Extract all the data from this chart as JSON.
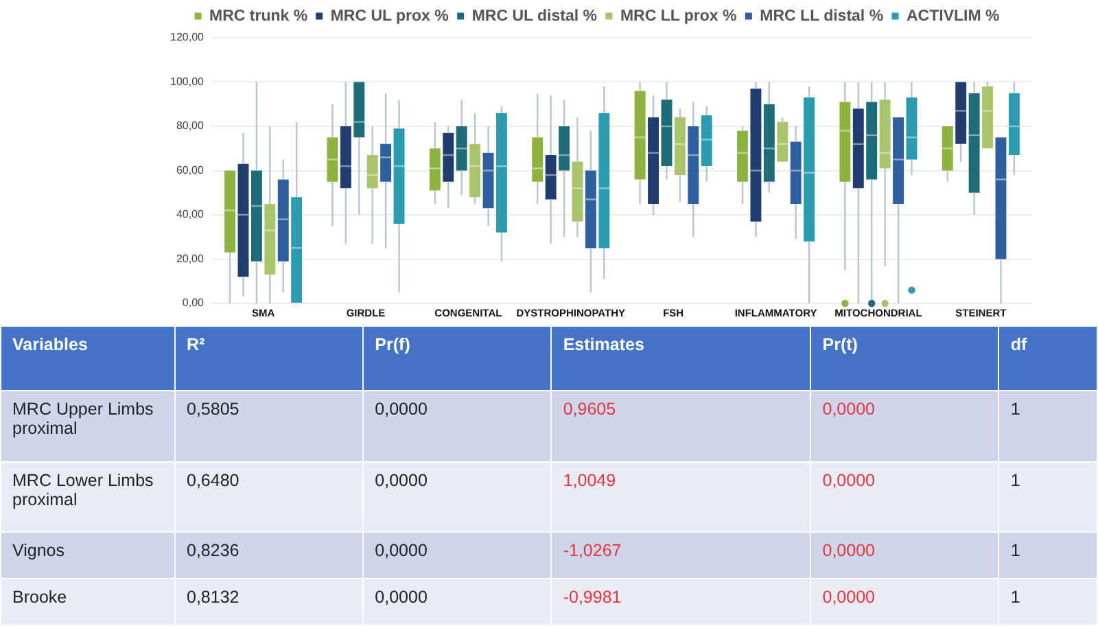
{
  "chart_data": [
    {
      "type": "box",
      "categories": [
        "SMA",
        "GIRDLE",
        "CONGENITAL",
        "DYSTROPHINOPATHY",
        "FSH",
        "INFLAMMATORY",
        "MITOCHONDRIAL",
        "STEINERT"
      ],
      "legend": "top",
      "grid": "y",
      "ylim": [
        0,
        120
      ],
      "yticks": [
        {
          "value": 0,
          "label": "0,00"
        },
        {
          "value": 20,
          "label": "20,00"
        },
        {
          "value": 40,
          "label": "40,00"
        },
        {
          "value": 60,
          "label": "60,00"
        },
        {
          "value": 80,
          "label": "80,00"
        },
        {
          "value": 100,
          "label": "100,00"
        },
        {
          "value": 120,
          "label": "120,00"
        }
      ],
      "series": [
        {
          "name": "MRC trunk %",
          "color": "#8db33f",
          "boxes": [
            {
              "low": 0,
              "q1": 23,
              "median": 42,
              "q3": 60,
              "high": 60
            },
            {
              "low": 35,
              "q1": 55,
              "median": 65,
              "q3": 75,
              "high": 90
            },
            {
              "low": 45,
              "q1": 51,
              "median": 61,
              "q3": 70,
              "high": 82
            },
            {
              "low": 45,
              "q1": 55,
              "median": 61,
              "q3": 75,
              "high": 95
            },
            {
              "low": 45,
              "q1": 56,
              "median": 75,
              "q3": 96,
              "high": 100
            },
            {
              "low": 45,
              "q1": 55,
              "median": 68,
              "q3": 78,
              "high": 80
            },
            {
              "low": 15,
              "q1": 55,
              "median": 78,
              "q3": 91,
              "high": 100,
              "outliers": [
                0
              ]
            },
            {
              "low": 55,
              "q1": 60,
              "median": 70,
              "q3": 80,
              "high": 80
            }
          ]
        },
        {
          "name": "MRC UL prox %",
          "color": "#1f3d6e",
          "boxes": [
            {
              "low": 3,
              "q1": 12,
              "median": 40,
              "q3": 63,
              "high": 77
            },
            {
              "low": 27,
              "q1": 52,
              "median": 62,
              "q3": 80,
              "high": 100
            },
            {
              "low": 43,
              "q1": 55,
              "median": 67,
              "q3": 77,
              "high": 80
            },
            {
              "low": 27,
              "q1": 47,
              "median": 58,
              "q3": 67,
              "high": 94
            },
            {
              "low": 40,
              "q1": 45,
              "median": 68,
              "q3": 84,
              "high": 94
            },
            {
              "low": 30,
              "q1": 37,
              "median": 60,
              "q3": 97,
              "high": 100
            },
            {
              "low": 0,
              "q1": 52,
              "median": 72,
              "q3": 88,
              "high": 100
            },
            {
              "low": 64,
              "q1": 72,
              "median": 87,
              "q3": 100,
              "high": 100
            }
          ]
        },
        {
          "name": "MRC UL distal %",
          "color": "#1e6b7a",
          "boxes": [
            {
              "low": 0,
              "q1": 19,
              "median": 44,
              "q3": 60,
              "high": 100
            },
            {
              "low": 40,
              "q1": 75,
              "median": 82,
              "q3": 100,
              "high": 100
            },
            {
              "low": 49,
              "q1": 60,
              "median": 70,
              "q3": 80,
              "high": 92
            },
            {
              "low": 30,
              "q1": 60,
              "median": 67,
              "q3": 80,
              "high": 92
            },
            {
              "low": 56,
              "q1": 62,
              "median": 80,
              "q3": 92,
              "high": 100
            },
            {
              "low": 50,
              "q1": 55,
              "median": 70,
              "q3": 90,
              "high": 100
            },
            {
              "low": 0,
              "q1": 56,
              "median": 76,
              "q3": 91,
              "high": 100,
              "outliers": [
                0
              ]
            },
            {
              "low": 40,
              "q1": 50,
              "median": 76,
              "q3": 95,
              "high": 100
            }
          ]
        },
        {
          "name": "MRC LL prox %",
          "color": "#a9c46a",
          "boxes": [
            {
              "low": 0,
              "q1": 13,
              "median": 33,
              "q3": 45,
              "high": 80
            },
            {
              "low": 27,
              "q1": 52,
              "median": 58,
              "q3": 67,
              "high": 80
            },
            {
              "low": 45,
              "q1": 48,
              "median": 62,
              "q3": 72,
              "high": 86
            },
            {
              "low": 30,
              "q1": 37,
              "median": 52,
              "q3": 64,
              "high": 84
            },
            {
              "low": 46,
              "q1": 58,
              "median": 72,
              "q3": 84,
              "high": 88
            },
            {
              "low": 64,
              "q1": 64,
              "median": 72,
              "q3": 82,
              "high": 84
            },
            {
              "low": 17,
              "q1": 61,
              "median": 68,
              "q3": 92,
              "high": 100,
              "outliers": [
                0
              ]
            },
            {
              "low": 70,
              "q1": 70,
              "median": 87,
              "q3": 98,
              "high": 100
            }
          ]
        },
        {
          "name": "MRC LL distal %",
          "color": "#2e5f9e",
          "boxes": [
            {
              "low": 5,
              "q1": 19,
              "median": 38,
              "q3": 56,
              "high": 65
            },
            {
              "low": 25,
              "q1": 55,
              "median": 66,
              "q3": 72,
              "high": 95
            },
            {
              "low": 35,
              "q1": 43,
              "median": 60,
              "q3": 68,
              "high": 80
            },
            {
              "low": 5,
              "q1": 25,
              "median": 47,
              "q3": 60,
              "high": 78
            },
            {
              "low": 30,
              "q1": 45,
              "median": 67,
              "q3": 80,
              "high": 91
            },
            {
              "low": 29,
              "q1": 45,
              "median": 60,
              "q3": 73,
              "high": 80
            },
            {
              "low": 0,
              "q1": 45,
              "median": 65,
              "q3": 84,
              "high": 84
            },
            {
              "low": 0,
              "q1": 20,
              "median": 56,
              "q3": 75,
              "high": 75
            }
          ]
        },
        {
          "name": "ACTIVLIM %",
          "color": "#2a9bb0",
          "boxes": [
            {
              "low": 0,
              "q1": 0,
              "median": 25,
              "q3": 48,
              "high": 82
            },
            {
              "low": 5,
              "q1": 36,
              "median": 62,
              "q3": 79,
              "high": 92
            },
            {
              "low": 19,
              "q1": 32,
              "median": 62,
              "q3": 86,
              "high": 89
            },
            {
              "low": 11,
              "q1": 25,
              "median": 52,
              "q3": 86,
              "high": 98
            },
            {
              "low": 55,
              "q1": 62,
              "median": 74,
              "q3": 85,
              "high": 89
            },
            {
              "low": 0,
              "q1": 28,
              "median": 59,
              "q3": 93,
              "high": 98
            },
            {
              "low": 58,
              "q1": 65,
              "median": 75,
              "q3": 93,
              "high": 100,
              "outliers": [
                6
              ]
            },
            {
              "low": 58,
              "q1": 67,
              "median": 80,
              "q3": 95,
              "high": 100
            }
          ]
        }
      ]
    },
    {
      "type": "other",
      "categories": [
        "Variables",
        "R²",
        "Pr(f)",
        "Estimates",
        "Pr(t)",
        "df"
      ],
      "y_categories": [
        "MRC Upper Limbs proximal",
        "MRC Lower Limbs proximal",
        "Vignos",
        "Brooke"
      ],
      "cell_labels": [
        [
          "0,5805",
          "0,0000",
          "0,9605",
          "0,0000",
          "1"
        ],
        [
          "0,6480",
          "0,0000",
          "1,0049",
          "0,0000",
          "1"
        ],
        [
          "0,8236",
          "0,0000",
          "-1,0267",
          "0,0000",
          "1"
        ],
        [
          "0,8132",
          "0,0000",
          "-0,9981",
          "0,0000",
          "1"
        ]
      ]
    }
  ]
}
